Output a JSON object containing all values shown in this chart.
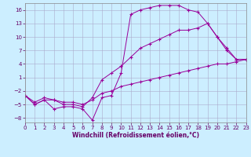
{
  "xlabel": "Windchill (Refroidissement éolien,°C)",
  "ylabel": "",
  "bg_color": "#cceeff",
  "line_color": "#990099",
  "grid_color": "#aaaacc",
  "line1_x": [
    0,
    1,
    2,
    3,
    4,
    5,
    6,
    7,
    8,
    9,
    10,
    11,
    12,
    13,
    14,
    15,
    16,
    17,
    18,
    19,
    20,
    21,
    22,
    23
  ],
  "line1_y": [
    -3,
    -5,
    -4,
    -6,
    -5.5,
    -5.5,
    -6,
    -8.5,
    -3.5,
    -3,
    2,
    15,
    16,
    16.5,
    17,
    17,
    17,
    16,
    15.5,
    13,
    10,
    7.5,
    5,
    5
  ],
  "line2_x": [
    0,
    1,
    2,
    3,
    4,
    5,
    6,
    7,
    8,
    9,
    10,
    11,
    12,
    13,
    14,
    15,
    16,
    17,
    18,
    19,
    20,
    21,
    22,
    23
  ],
  "line2_y": [
    -3,
    -5,
    -4,
    -4,
    -5,
    -5,
    -5.5,
    -3.5,
    0.5,
    2,
    3.5,
    5.5,
    7.5,
    8.5,
    9.5,
    10.5,
    11.5,
    11.5,
    12,
    13,
    10,
    7,
    5,
    5
  ],
  "line3_x": [
    0,
    1,
    2,
    3,
    4,
    5,
    6,
    7,
    8,
    9,
    10,
    11,
    12,
    13,
    14,
    15,
    16,
    17,
    18,
    19,
    20,
    21,
    22,
    23
  ],
  "line3_y": [
    -3,
    -4.5,
    -3.5,
    -4,
    -4.5,
    -4.5,
    -5,
    -4,
    -2.5,
    -2,
    -1,
    -0.5,
    0,
    0.5,
    1,
    1.5,
    2,
    2.5,
    3,
    3.5,
    4,
    4,
    4.5,
    5
  ],
  "xlim": [
    0,
    23
  ],
  "ylim": [
    -9,
    17.5
  ],
  "yticks": [
    -8,
    -5,
    -2,
    1,
    4,
    7,
    10,
    13,
    16
  ],
  "xticks": [
    0,
    1,
    2,
    3,
    4,
    5,
    6,
    7,
    8,
    9,
    10,
    11,
    12,
    13,
    14,
    15,
    16,
    17,
    18,
    19,
    20,
    21,
    22,
    23
  ],
  "tick_fontsize": 5,
  "xlabel_fontsize": 5.5
}
